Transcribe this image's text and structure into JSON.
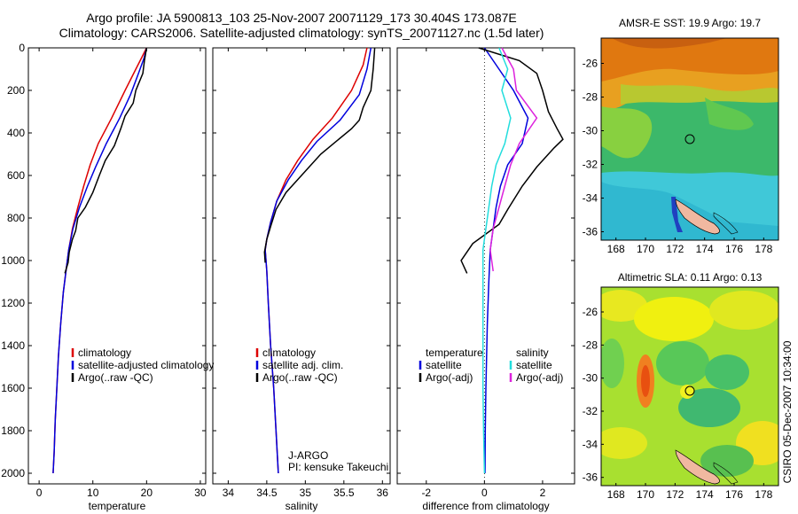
{
  "header": {
    "line1": "Argo profile: JA 5900813_103 25-Nov-2007 20071129_173 30.404S 173.087E",
    "line2": "Climatology: CARS2006. Satellite-adjusted climatology: synTS_20071127.nc (1.5d later)"
  },
  "footer": {
    "credit": "CSIRO 05-Dec-2007 10:34:00"
  },
  "colors": {
    "climatology": "#dd0000",
    "satellite": "#0000dd",
    "argo": "#000000",
    "sat_salinity": "#22dddd",
    "argo_salinity": "#dd22dd"
  },
  "chart_data": [
    {
      "id": "temperature",
      "type": "line",
      "xlabel": "temperature",
      "ylabel": "",
      "xlim": [
        -2,
        31
      ],
      "ylim": [
        2050,
        0
      ],
      "xticks": [
        0,
        10,
        20,
        30
      ],
      "yticks": [
        0,
        200,
        400,
        600,
        800,
        1000,
        1200,
        1400,
        1600,
        1800,
        2000
      ],
      "legend": [
        "climatology",
        "satellite-adjusted climatology",
        "Argo(..raw -QC)"
      ],
      "series": [
        {
          "name": "climatology",
          "color": "#dd0000",
          "points": [
            [
              20,
              0
            ],
            [
              19,
              50
            ],
            [
              18,
              100
            ],
            [
              16,
              200
            ],
            [
              13.5,
              330
            ],
            [
              11,
              450
            ],
            [
              9.5,
              550
            ],
            [
              8.3,
              650
            ],
            [
              7.2,
              750
            ],
            [
              6.2,
              850
            ],
            [
              5.5,
              950
            ],
            [
              5,
              1050
            ],
            [
              4.5,
              1150
            ],
            [
              4.0,
              1300
            ],
            [
              3.6,
              1450
            ],
            [
              3.3,
              1600
            ],
            [
              3.0,
              1750
            ],
            [
              2.8,
              1900
            ],
            [
              2.6,
              2000
            ]
          ]
        },
        {
          "name": "satellite-adjusted climatology",
          "color": "#0000dd",
          "points": [
            [
              20,
              0
            ],
            [
              19.5,
              50
            ],
            [
              18.5,
              120
            ],
            [
              17,
              220
            ],
            [
              15,
              330
            ],
            [
              12.5,
              450
            ],
            [
              10.5,
              560
            ],
            [
              9,
              650
            ],
            [
              7.5,
              750
            ],
            [
              6.3,
              850
            ],
            [
              5.5,
              950
            ],
            [
              5,
              1050
            ],
            [
              4.5,
              1150
            ],
            [
              4.0,
              1300
            ],
            [
              3.6,
              1450
            ],
            [
              3.3,
              1600
            ],
            [
              3.0,
              1750
            ],
            [
              2.8,
              1900
            ],
            [
              2.6,
              2000
            ]
          ]
        },
        {
          "name": "Argo(..raw -QC)",
          "color": "#000000",
          "points": [
            [
              20,
              0
            ],
            [
              19.6,
              60
            ],
            [
              19.3,
              120
            ],
            [
              18,
              200
            ],
            [
              17.5,
              260
            ],
            [
              16,
              320
            ],
            [
              15.2,
              380
            ],
            [
              14,
              460
            ],
            [
              12.3,
              530
            ],
            [
              11.2,
              600
            ],
            [
              10,
              680
            ],
            [
              8.6,
              750
            ],
            [
              7.2,
              800
            ],
            [
              6.8,
              860
            ],
            [
              6.2,
              900
            ],
            [
              5.6,
              960
            ],
            [
              5.4,
              1010
            ],
            [
              4.8,
              1060
            ]
          ]
        }
      ]
    },
    {
      "id": "salinity",
      "type": "line",
      "xlabel": "salinity",
      "ylabel": "",
      "xlim": [
        33.8,
        36.1
      ],
      "ylim": [
        2050,
        0
      ],
      "xticks": [
        34,
        34.5,
        35,
        35.5,
        36
      ],
      "yticks": [
        0,
        200,
        400,
        600,
        800,
        1000,
        1200,
        1400,
        1600,
        1800,
        2000
      ],
      "legend": [
        "climatology",
        "satellite adj. clim.",
        "Argo(..raw -QC)"
      ],
      "annotation": [
        "J-ARGO",
        "PI: kensuke Takeuchi"
      ],
      "series": [
        {
          "name": "climatology",
          "color": "#dd0000",
          "points": [
            [
              35.8,
              0
            ],
            [
              35.75,
              80
            ],
            [
              35.6,
              200
            ],
            [
              35.35,
              330
            ],
            [
              35.1,
              430
            ],
            [
              34.9,
              530
            ],
            [
              34.75,
              620
            ],
            [
              34.63,
              720
            ],
            [
              34.55,
              820
            ],
            [
              34.5,
              900
            ],
            [
              34.48,
              950
            ],
            [
              34.5,
              1050
            ],
            [
              34.52,
              1200
            ],
            [
              34.55,
              1400
            ],
            [
              34.59,
              1600
            ],
            [
              34.62,
              1800
            ],
            [
              34.65,
              2000
            ]
          ]
        },
        {
          "name": "satellite adj. clim.",
          "color": "#0000dd",
          "points": [
            [
              35.85,
              0
            ],
            [
              35.8,
              100
            ],
            [
              35.7,
              220
            ],
            [
              35.45,
              340
            ],
            [
              35.15,
              440
            ],
            [
              34.95,
              530
            ],
            [
              34.78,
              620
            ],
            [
              34.63,
              720
            ],
            [
              34.55,
              820
            ],
            [
              34.5,
              900
            ],
            [
              34.48,
              950
            ],
            [
              34.5,
              1050
            ],
            [
              34.52,
              1200
            ],
            [
              34.55,
              1400
            ],
            [
              34.59,
              1600
            ],
            [
              34.62,
              1800
            ],
            [
              34.65,
              2000
            ]
          ]
        },
        {
          "name": "Argo(..raw -QC)",
          "color": "#000000",
          "points": [
            [
              35.9,
              0
            ],
            [
              35.88,
              100
            ],
            [
              35.85,
              200
            ],
            [
              35.75,
              280
            ],
            [
              35.7,
              340
            ],
            [
              35.6,
              380
            ],
            [
              35.4,
              440
            ],
            [
              35.2,
              500
            ],
            [
              35.05,
              560
            ],
            [
              34.9,
              620
            ],
            [
              34.75,
              680
            ],
            [
              34.62,
              760
            ],
            [
              34.55,
              840
            ],
            [
              34.5,
              900
            ],
            [
              34.47,
              960
            ],
            [
              34.48,
              1010
            ]
          ]
        }
      ]
    },
    {
      "id": "difference",
      "type": "line",
      "xlabel": "difference from climatology",
      "ylabel": "",
      "xlim": [
        -3,
        3.1
      ],
      "ylim": [
        2050,
        0
      ],
      "xticks": [
        -2,
        0,
        2
      ],
      "yticks": [
        0,
        200,
        400,
        600,
        800,
        1000,
        1200,
        1400,
        1600,
        1800,
        2000
      ],
      "legend_left": [
        "temperature",
        "satellite",
        "Argo(-adj)"
      ],
      "legend_right": [
        "salinity",
        "satellite",
        "Argo(-adj)"
      ],
      "series": [
        {
          "name": "temperature satellite",
          "color": "#0000dd",
          "points": [
            [
              0,
              0
            ],
            [
              0.5,
              100
            ],
            [
              1.0,
              200
            ],
            [
              1.5,
              330
            ],
            [
              1.3,
              450
            ],
            [
              0.8,
              550
            ],
            [
              0.55,
              650
            ],
            [
              0.4,
              750
            ],
            [
              0.3,
              850
            ],
            [
              0.2,
              950
            ],
            [
              0.15,
              1100
            ],
            [
              0.1,
              1300
            ],
            [
              0.05,
              1600
            ],
            [
              0.03,
              1800
            ],
            [
              0.02,
              2000
            ]
          ]
        },
        {
          "name": "temperature Argo(-adj)",
          "color": "#000000",
          "points": [
            [
              -0.2,
              0
            ],
            [
              1.2,
              60
            ],
            [
              1.8,
              120
            ],
            [
              2.0,
              200
            ],
            [
              2.2,
              300
            ],
            [
              2.5,
              380
            ],
            [
              2.7,
              430
            ],
            [
              2.4,
              470
            ],
            [
              1.8,
              560
            ],
            [
              1.3,
              650
            ],
            [
              0.8,
              760
            ],
            [
              0.5,
              830
            ],
            [
              -0.4,
              920
            ],
            [
              -0.8,
              1000
            ],
            [
              -0.6,
              1060
            ]
          ]
        },
        {
          "name": "salinity satellite",
          "color": "#22dddd",
          "points": [
            [
              0.5,
              0
            ],
            [
              0.8,
              100
            ],
            [
              0.6,
              200
            ],
            [
              0.9,
              330
            ],
            [
              0.7,
              450
            ],
            [
              0.4,
              550
            ],
            [
              0.25,
              650
            ],
            [
              0.15,
              750
            ],
            [
              0.05,
              850
            ],
            [
              -0.05,
              950
            ],
            [
              -0.05,
              1100
            ],
            [
              -0.05,
              1300
            ],
            [
              -0.05,
              1600
            ],
            [
              -0.03,
              1800
            ],
            [
              0,
              2000
            ]
          ]
        },
        {
          "name": "salinity Argo(-adj)",
          "color": "#dd22dd",
          "points": [
            [
              0.6,
              0
            ],
            [
              1.0,
              100
            ],
            [
              1.1,
              200
            ],
            [
              1.8,
              330
            ],
            [
              1.2,
              450
            ],
            [
              0.9,
              550
            ],
            [
              0.7,
              650
            ],
            [
              0.5,
              750
            ],
            [
              0.3,
              850
            ],
            [
              0.2,
              950
            ],
            [
              0.3,
              1050
            ]
          ]
        }
      ]
    }
  ],
  "maps": [
    {
      "id": "sst",
      "title": "AMSR-E SST: 19.9 Argo: 19.7",
      "xticks": [
        168,
        170,
        172,
        174,
        176,
        178
      ],
      "yticks": [
        -26,
        -28,
        -30,
        -32,
        -34,
        -36
      ],
      "xlim": [
        167,
        179
      ],
      "ylim": [
        -36.5,
        -24.5
      ]
    },
    {
      "id": "sla",
      "title": "Altimetric SLA: 0.11 Argo: 0.13",
      "xticks": [
        168,
        170,
        172,
        174,
        176,
        178
      ],
      "yticks": [
        -26,
        -28,
        -30,
        -32,
        -34,
        -36
      ],
      "xlim": [
        167,
        179
      ],
      "ylim": [
        -36.5,
        -24.5
      ]
    }
  ]
}
